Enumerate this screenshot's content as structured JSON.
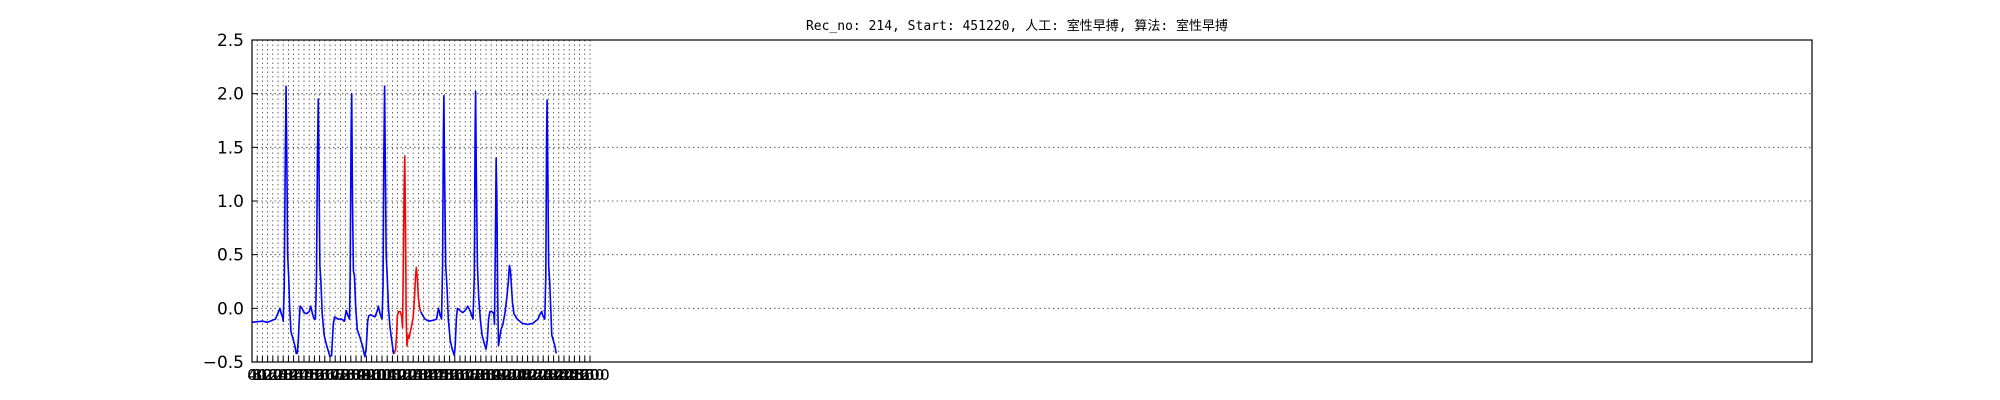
{
  "chart_data": {
    "type": "line",
    "title": "Rec_no: 214, Start: 451220, 人工: 室性早搏, 算法: 室性早搏",
    "xlabel": "",
    "ylabel": "",
    "xlim": [
      0,
      12000
    ],
    "ylim": [
      -0.5,
      2.5
    ],
    "grid": true,
    "yticks": [
      -0.5,
      0.0,
      0.5,
      1.0,
      1.5,
      2.0,
      2.5
    ],
    "ytick_labels": [
      "−0.5",
      "0.0",
      "0.5",
      "1.0",
      "1.5",
      "2.0",
      "2.5"
    ],
    "xticks": [
      0,
      40,
      80,
      120,
      160,
      200,
      240,
      280,
      320,
      360,
      400,
      440,
      480,
      520,
      560,
      600,
      640,
      680,
      720,
      760,
      800,
      840,
      880,
      920,
      960,
      1000,
      1040,
      1080,
      1120,
      1160,
      1200,
      1240,
      1280,
      1320,
      1360,
      1400,
      1440,
      1480,
      1520,
      1560,
      1600,
      1640,
      1680,
      1720,
      1760,
      1800,
      1840,
      1880,
      1920,
      1960,
      2000,
      2040,
      2080,
      2120,
      2160,
      2200,
      2240,
      2280,
      2320,
      2360,
      2400,
      2440,
      2480,
      2520,
      2560,
      2600
    ],
    "series": [
      {
        "color": "#0000ff",
        "points": [
          [
            0,
            -0.13
          ],
          [
            80,
            -0.12
          ],
          [
            120,
            -0.13
          ],
          [
            160,
            -0.11
          ],
          [
            180,
            -0.1
          ],
          [
            205,
            -0.03
          ],
          [
            215,
            0.0
          ],
          [
            225,
            -0.05
          ],
          [
            235,
            -0.08
          ],
          [
            240,
            -0.12
          ],
          [
            248,
            0.2
          ],
          [
            256,
            1.4
          ],
          [
            262,
            2.07
          ],
          [
            268,
            1.4
          ],
          [
            274,
            0.5
          ],
          [
            282,
            0.3
          ],
          [
            290,
            0.0
          ],
          [
            300,
            -0.22
          ],
          [
            315,
            -0.28
          ],
          [
            330,
            -0.35
          ],
          [
            340,
            -0.42
          ],
          [
            348,
            -0.42
          ],
          [
            356,
            -0.3
          ],
          [
            364,
            -0.1
          ],
          [
            370,
            0.02
          ],
          [
            385,
            0.0
          ],
          [
            400,
            -0.04
          ],
          [
            420,
            -0.05
          ],
          [
            440,
            -0.03
          ],
          [
            452,
            0.02
          ],
          [
            465,
            -0.05
          ],
          [
            478,
            -0.1
          ],
          [
            488,
            -0.1
          ],
          [
            496,
            0.3
          ],
          [
            504,
            1.5
          ],
          [
            510,
            1.95
          ],
          [
            516,
            1.2
          ],
          [
            522,
            0.4
          ],
          [
            530,
            0.25
          ],
          [
            540,
            -0.05
          ],
          [
            555,
            -0.25
          ],
          [
            575,
            -0.35
          ],
          [
            600,
            -0.45
          ],
          [
            612,
            -0.44
          ],
          [
            625,
            -0.15
          ],
          [
            635,
            -0.08
          ],
          [
            660,
            -0.1
          ],
          [
            690,
            -0.1
          ],
          [
            710,
            -0.12
          ],
          [
            725,
            -0.02
          ],
          [
            735,
            -0.06
          ],
          [
            750,
            -0.1
          ],
          [
            755,
            0.3
          ],
          [
            762,
            1.6
          ],
          [
            767,
            2.0
          ],
          [
            773,
            1.0
          ],
          [
            780,
            0.35
          ],
          [
            788,
            0.3
          ],
          [
            798,
            0.0
          ],
          [
            810,
            -0.2
          ],
          [
            830,
            -0.27
          ],
          [
            850,
            -0.35
          ],
          [
            868,
            -0.45
          ],
          [
            878,
            -0.38
          ],
          [
            890,
            -0.12
          ],
          [
            898,
            -0.07
          ],
          [
            915,
            -0.06
          ],
          [
            945,
            -0.08
          ],
          [
            962,
            -0.03
          ],
          [
            972,
            0.02
          ],
          [
            985,
            -0.05
          ],
          [
            1000,
            -0.1
          ],
          [
            1008,
            0.2
          ],
          [
            1014,
            1.4
          ],
          [
            1020,
            2.07
          ],
          [
            1026,
            1.3
          ],
          [
            1032,
            0.5
          ],
          [
            1040,
            0.3
          ],
          [
            1050,
            0.0
          ],
          [
            1062,
            -0.18
          ],
          [
            1075,
            -0.3
          ],
          [
            1088,
            -0.42
          ],
          [
            1095,
            -0.42
          ]
        ]
      },
      {
        "color": "#ff0000",
        "points": [
          [
            1095,
            -0.42
          ],
          [
            1105,
            -0.38
          ],
          [
            1112,
            -0.25
          ],
          [
            1118,
            -0.07
          ],
          [
            1128,
            -0.03
          ],
          [
            1140,
            -0.03
          ],
          [
            1152,
            -0.08
          ],
          [
            1158,
            -0.18
          ],
          [
            1164,
            0.4
          ],
          [
            1170,
            1.1
          ],
          [
            1175,
            1.42
          ],
          [
            1180,
            0.9
          ],
          [
            1186,
            -0.1
          ],
          [
            1192,
            -0.35
          ],
          [
            1200,
            -0.25
          ],
          [
            1208,
            -0.28
          ],
          [
            1218,
            -0.22
          ],
          [
            1230,
            -0.15
          ],
          [
            1240,
            -0.08
          ],
          [
            1250,
            0.1
          ],
          [
            1258,
            0.3
          ],
          [
            1264,
            0.38
          ],
          [
            1272,
            0.28
          ],
          [
            1280,
            0.1
          ],
          [
            1290,
            0.0
          ],
          [
            1298,
            -0.03
          ]
        ]
      },
      {
        "color": "#0000ff",
        "points": [
          [
            1298,
            -0.03
          ],
          [
            1310,
            -0.06
          ],
          [
            1330,
            -0.1
          ],
          [
            1360,
            -0.12
          ],
          [
            1400,
            -0.11
          ],
          [
            1420,
            -0.1
          ],
          [
            1428,
            -0.04
          ],
          [
            1435,
            0.0
          ],
          [
            1445,
            -0.05
          ],
          [
            1458,
            -0.1
          ],
          [
            1466,
            0.4
          ],
          [
            1472,
            1.6
          ],
          [
            1476,
            1.98
          ],
          [
            1482,
            1.2
          ],
          [
            1490,
            0.4
          ],
          [
            1500,
            0.2
          ],
          [
            1510,
            -0.1
          ],
          [
            1525,
            -0.3
          ],
          [
            1540,
            -0.38
          ],
          [
            1556,
            -0.44
          ],
          [
            1563,
            -0.35
          ],
          [
            1572,
            -0.1
          ],
          [
            1580,
            0.0
          ],
          [
            1600,
            -0.02
          ],
          [
            1620,
            -0.04
          ],
          [
            1640,
            -0.02
          ],
          [
            1660,
            0.02
          ],
          [
            1680,
            -0.03
          ],
          [
            1700,
            -0.1
          ],
          [
            1710,
            0.3
          ],
          [
            1716,
            1.6
          ],
          [
            1720,
            2.02
          ],
          [
            1726,
            1.2
          ],
          [
            1734,
            0.4
          ],
          [
            1744,
            0.1
          ],
          [
            1756,
            -0.1
          ],
          [
            1770,
            -0.25
          ],
          [
            1785,
            -0.32
          ],
          [
            1800,
            -0.38
          ],
          [
            1810,
            -0.3
          ],
          [
            1820,
            -0.1
          ],
          [
            1830,
            -0.03
          ],
          [
            1845,
            -0.03
          ],
          [
            1860,
            -0.05
          ],
          [
            1865,
            -0.15
          ],
          [
            1872,
            0.6
          ],
          [
            1878,
            1.4
          ],
          [
            1884,
            1.0
          ],
          [
            1890,
            0.1
          ],
          [
            1896,
            -0.35
          ],
          [
            1902,
            -0.3
          ],
          [
            1915,
            -0.2
          ],
          [
            1930,
            -0.15
          ],
          [
            1945,
            -0.05
          ],
          [
            1960,
            0.1
          ],
          [
            1972,
            0.25
          ],
          [
            1980,
            0.4
          ],
          [
            1988,
            0.35
          ],
          [
            1996,
            0.2
          ],
          [
            2004,
            0.05
          ],
          [
            2015,
            -0.05
          ],
          [
            2040,
            -0.1
          ],
          [
            2080,
            -0.14
          ],
          [
            2120,
            -0.15
          ],
          [
            2160,
            -0.14
          ],
          [
            2200,
            -0.1
          ],
          [
            2218,
            -0.05
          ],
          [
            2228,
            -0.03
          ],
          [
            2238,
            -0.07
          ],
          [
            2252,
            -0.1
          ],
          [
            2260,
            0.3
          ],
          [
            2266,
            1.6
          ],
          [
            2270,
            1.94
          ],
          [
            2276,
            1.2
          ],
          [
            2282,
            0.4
          ],
          [
            2290,
            0.25
          ],
          [
            2298,
            0.0
          ],
          [
            2306,
            -0.25
          ],
          [
            2318,
            -0.3
          ],
          [
            2330,
            -0.35
          ],
          [
            2340,
            -0.42
          ]
        ]
      }
    ]
  }
}
